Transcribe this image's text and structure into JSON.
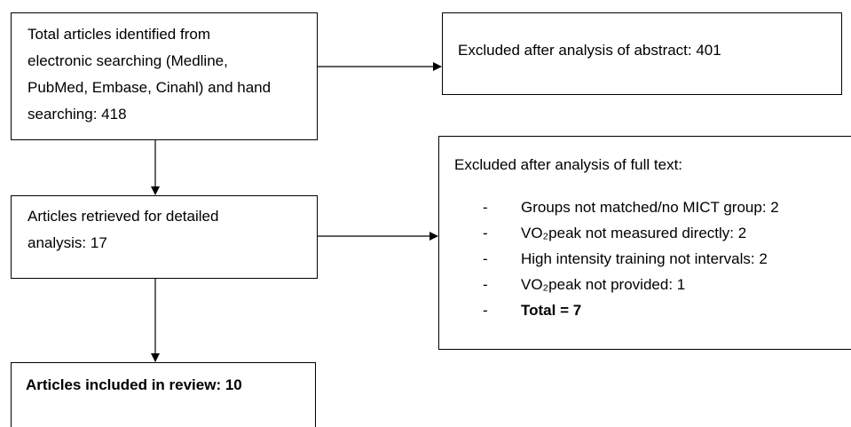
{
  "nodes": [
    {
      "lines": [
        "Total articles identified from",
        "electronic searching (Medline,",
        "PubMed, Embase, Cinahl) and hand",
        "searching: 418"
      ]
    },
    {
      "lines": [
        "Excluded after analysis of abstract: 401"
      ]
    },
    {
      "lines": [
        "Articles retrieved for detailed",
        "analysis: 17"
      ]
    },
    {
      "lines": [
        "Excluded after analysis of full text:"
      ],
      "items": [
        "Groups not matched/no MICT group: 2",
        "VO₂peak not measured directly: 2",
        "High intensity training not intervals: 2",
        "VO₂peak not provided: 1",
        "Total = 7"
      ]
    },
    {
      "lines": [
        "Articles included in review: 10"
      ]
    }
  ]
}
